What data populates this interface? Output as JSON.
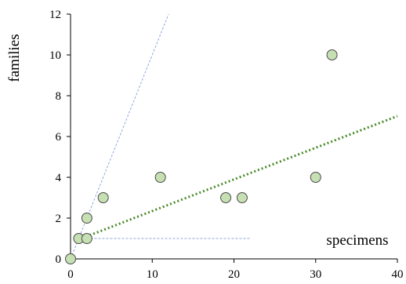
{
  "chart_data": {
    "type": "scatter",
    "xlabel": "specimens",
    "ylabel": "families",
    "xlim": [
      0,
      40
    ],
    "ylim": [
      0,
      12
    ],
    "xticks": [
      "0",
      "10",
      "20",
      "30",
      "40"
    ],
    "yticks": [
      "0",
      "2",
      "4",
      "6",
      "8",
      "10",
      "12"
    ],
    "grid": false,
    "points": [
      {
        "x": 0,
        "y": 0
      },
      {
        "x": 1,
        "y": 1
      },
      {
        "x": 2,
        "y": 1
      },
      {
        "x": 2,
        "y": 2
      },
      {
        "x": 4,
        "y": 3
      },
      {
        "x": 11,
        "y": 4
      },
      {
        "x": 19,
        "y": 3
      },
      {
        "x": 21,
        "y": 3
      },
      {
        "x": 30,
        "y": 4
      },
      {
        "x": 32,
        "y": 10
      }
    ],
    "reference_lines": [
      {
        "style": "dashed",
        "color": "#8fa6e0",
        "x": [
          0,
          12
        ],
        "y": [
          0,
          12
        ]
      },
      {
        "style": "dashed",
        "color": "#8fa6e0",
        "x": [
          1,
          22
        ],
        "y": [
          1,
          1
        ]
      }
    ],
    "trendline": {
      "style": "dotted",
      "color": "#4a8a2a",
      "x": [
        1,
        40
      ],
      "y": [
        0.95,
        7.0
      ]
    },
    "marker_fill": "#c6e0b4",
    "marker_stroke": "#4a4a4a"
  }
}
